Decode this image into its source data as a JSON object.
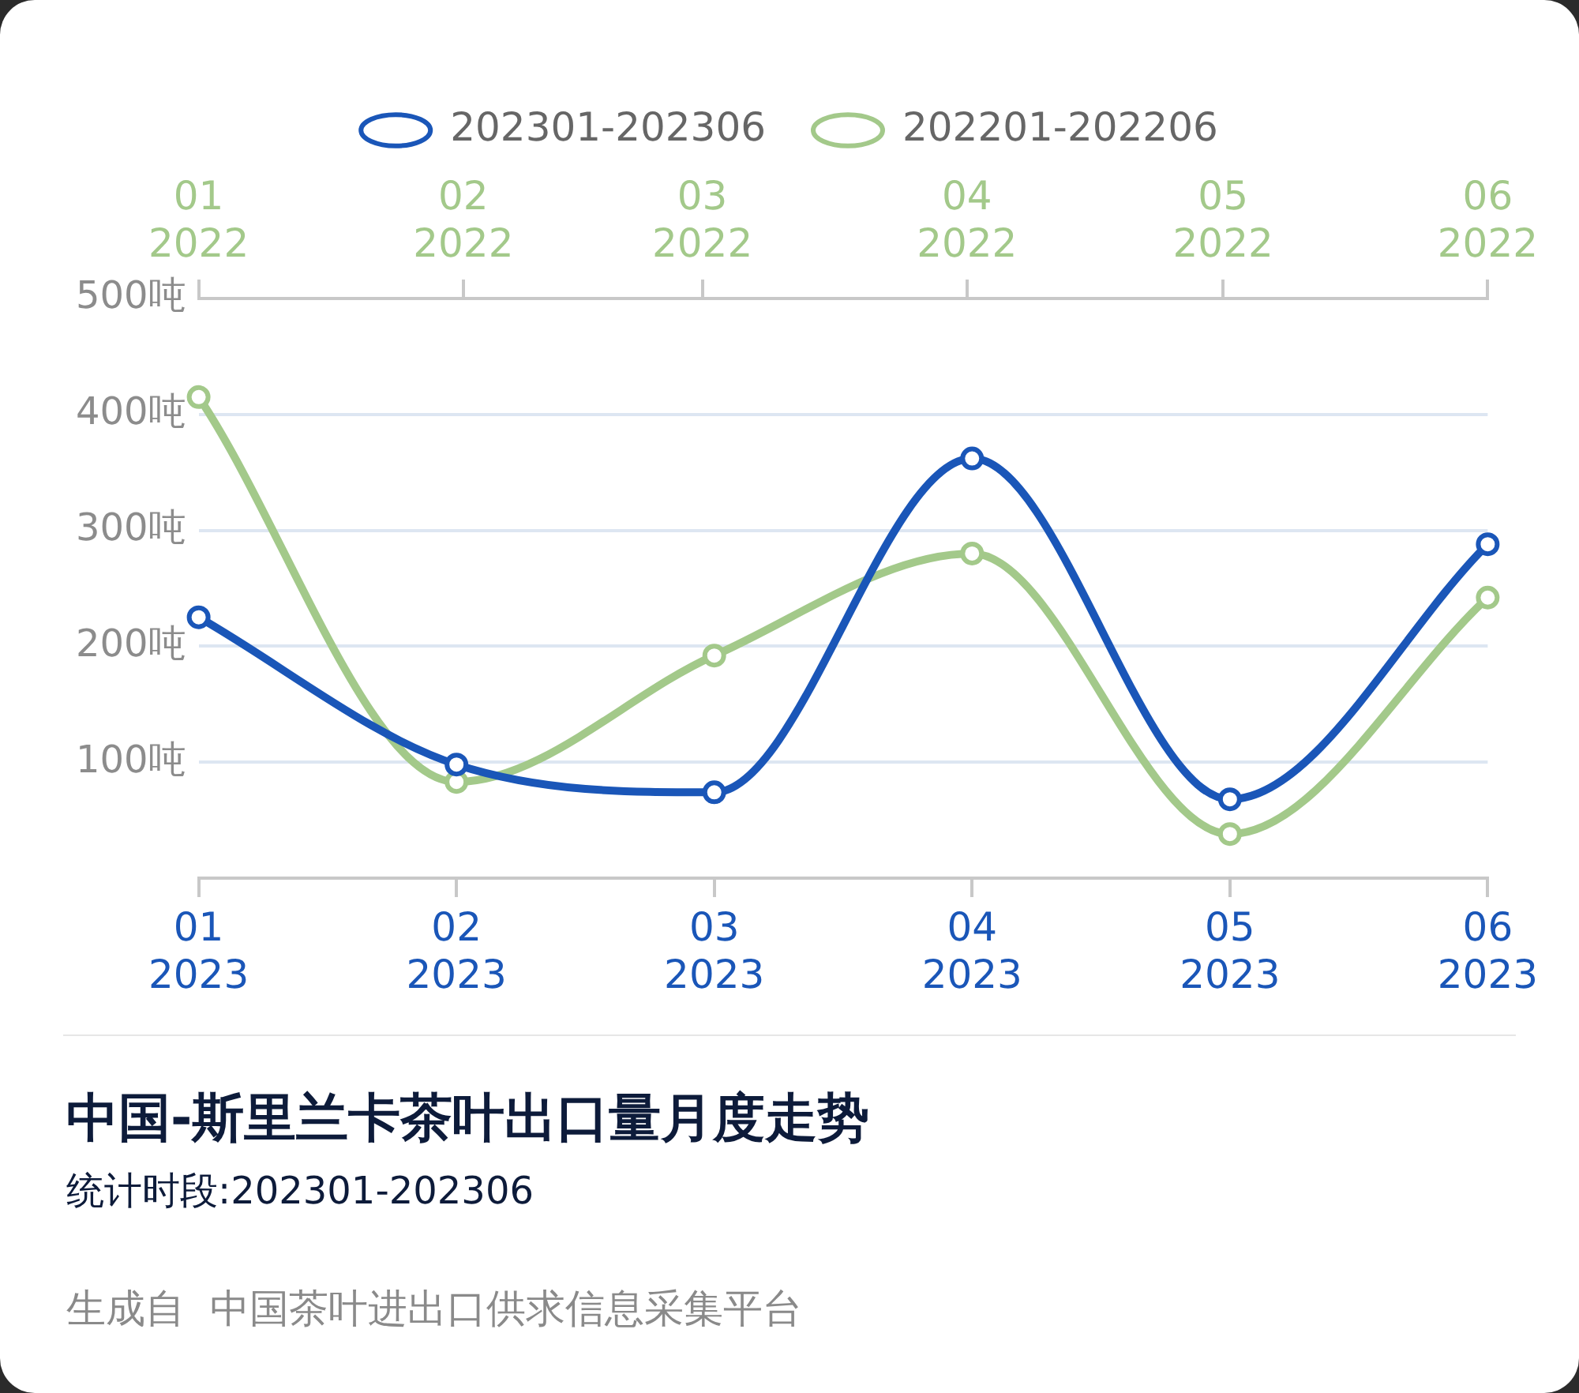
{
  "chart_data": {
    "type": "line",
    "title": "中国-斯里兰卡茶叶出口量月度走势",
    "subtitle": "统计时段:202301-202306",
    "annotations": [
      "生成自  中国茶叶进出口供求信息采集平台"
    ],
    "categories": [
      "01\n2023",
      "02\n2023",
      "03\n2023",
      "04\n2023",
      "05\n2023",
      "06\n2023"
    ],
    "x2lim": [
      "2022-01",
      "2022-06"
    ],
    "x2ticks": [
      {
        "value": "2022-01",
        "label": "01\n2022"
      },
      {
        "value": "2022-02",
        "label": "02\n2022"
      },
      {
        "value": "2022-03",
        "label": "03\n2022"
      },
      {
        "value": "2022-04",
        "label": "04\n2022"
      },
      {
        "value": "2022-05",
        "label": "05\n2022"
      },
      {
        "value": "2022-06",
        "label": "06\n2022"
      }
    ],
    "series": [
      {
        "name": "202301-202306",
        "color": "#1a56b8",
        "values": [
          225,
          98,
          74,
          362,
          68,
          288
        ]
      },
      {
        "name": "202201-202206",
        "color": "#a3c98a",
        "values": [
          415,
          83,
          192,
          280,
          38,
          242
        ]
      }
    ],
    "ylim": [
      0,
      500
    ],
    "yticks": [
      {
        "value": 0,
        "label": null
      },
      {
        "value": 100,
        "label": "100吨"
      },
      {
        "value": 200,
        "label": "200吨"
      },
      {
        "value": 300,
        "label": "300吨"
      },
      {
        "value": 400,
        "label": "400吨"
      },
      {
        "value": 500,
        "label": "500吨"
      }
    ],
    "grid": "y",
    "legend": "top",
    "marker": "circle",
    "line_style": "solid"
  }
}
